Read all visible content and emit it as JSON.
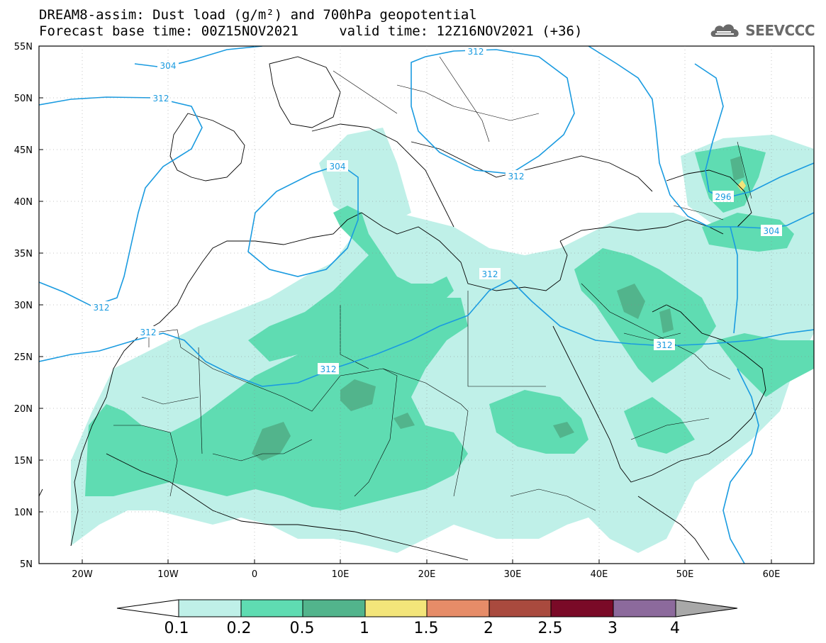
{
  "title": {
    "line1": "DREAM8-assim: Dust load (g/m²) and 700hPa geopotential",
    "line2": "Forecast base time: 00Z15NOV2021     valid time: 12Z16NOV2021 (+36)"
  },
  "logo": {
    "text": "SEEVCCC",
    "icon": "cloud-logo-icon"
  },
  "map": {
    "lat_labels": [
      "55N",
      "50N",
      "45N",
      "40N",
      "35N",
      "30N",
      "25N",
      "20N",
      "15N",
      "10N",
      "5N"
    ],
    "lon_labels": [
      "20W",
      "10W",
      "0",
      "10E",
      "20E",
      "30E",
      "40E",
      "50E",
      "60E"
    ],
    "contour_labels": [
      "304",
      "312",
      "312",
      "312",
      "304",
      "312",
      "312",
      "312",
      "296",
      "304",
      "312"
    ]
  },
  "colorbar": {
    "labels": [
      "0.1",
      "0.2",
      "0.5",
      "1",
      "1.5",
      "2",
      "2.5",
      "3",
      "4"
    ],
    "colors": [
      "#ffffff",
      "#bff0e8",
      "#5fdcb2",
      "#52b48c",
      "#f3e57a",
      "#e68c68",
      "#a94a3e",
      "#7a0a27",
      "#8c6a9c",
      "#a8a8a8"
    ]
  },
  "colors": {
    "dust_low": "#bff0e8",
    "dust_mid": "#5fdcb2",
    "dust_high": "#52b48c",
    "dust_peak": "#f3e57a",
    "contour": "#1a9be0"
  }
}
